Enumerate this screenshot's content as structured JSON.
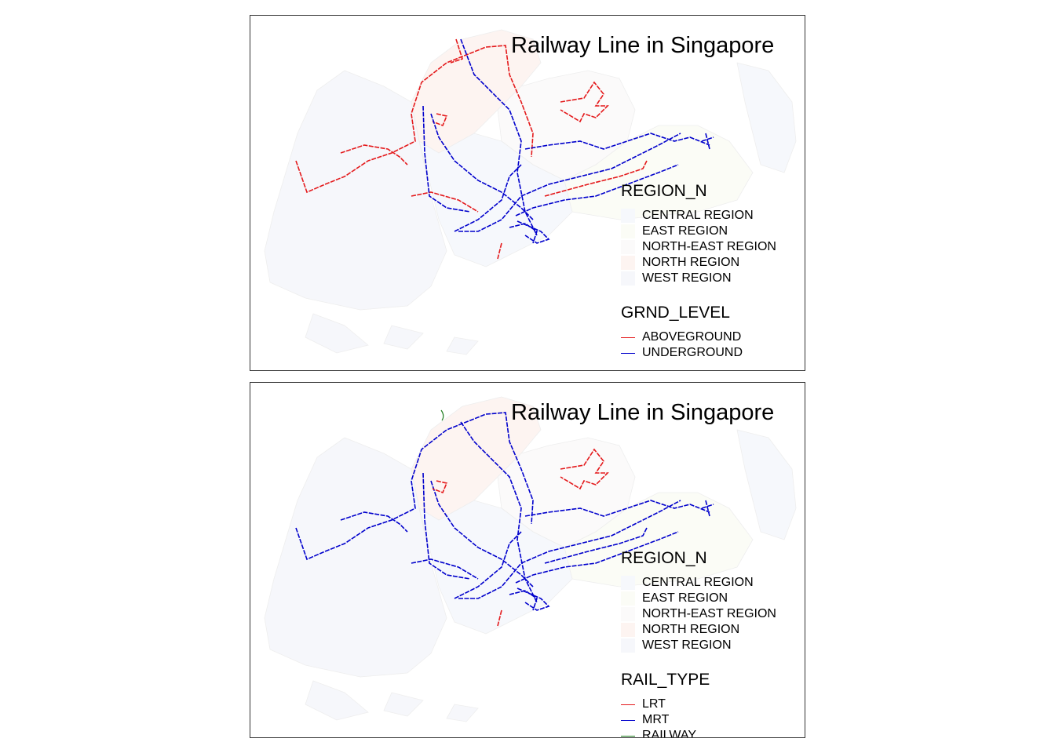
{
  "panels": [
    {
      "title": "Railway Line in Singapore",
      "region_legend": {
        "title": "REGION_N",
        "items": [
          {
            "label": "CENTRAL REGION",
            "color": "#f6f8fc"
          },
          {
            "label": "EAST REGION",
            "color": "#fbfcf6"
          },
          {
            "label": "NORTH-EAST REGION",
            "color": "#fbfafa"
          },
          {
            "label": "NORTH REGION",
            "color": "#fdf4f1"
          },
          {
            "label": "WEST REGION",
            "color": "#f6f7fb"
          }
        ]
      },
      "line_legend": {
        "title": "GRND_LEVEL",
        "items": [
          {
            "label": "ABOVEGROUND",
            "color": "#e41a1c"
          },
          {
            "label": "UNDERGROUND",
            "color": "#0000cc"
          }
        ]
      }
    },
    {
      "title": "Railway Line in Singapore",
      "region_legend": {
        "title": "REGION_N",
        "items": [
          {
            "label": "CENTRAL REGION",
            "color": "#f6f8fc"
          },
          {
            "label": "EAST REGION",
            "color": "#fbfcf6"
          },
          {
            "label": "NORTH-EAST REGION",
            "color": "#fbfafa"
          },
          {
            "label": "NORTH REGION",
            "color": "#fdf4f1"
          },
          {
            "label": "WEST REGION",
            "color": "#f6f7fb"
          }
        ]
      },
      "line_legend": {
        "title": "RAIL_TYPE",
        "items": [
          {
            "label": "LRT",
            "color": "#e41a1c"
          },
          {
            "label": "MRT",
            "color": "#0000cc"
          },
          {
            "label": "RAILWAY",
            "color": "#1a7a1a"
          }
        ]
      }
    }
  ]
}
